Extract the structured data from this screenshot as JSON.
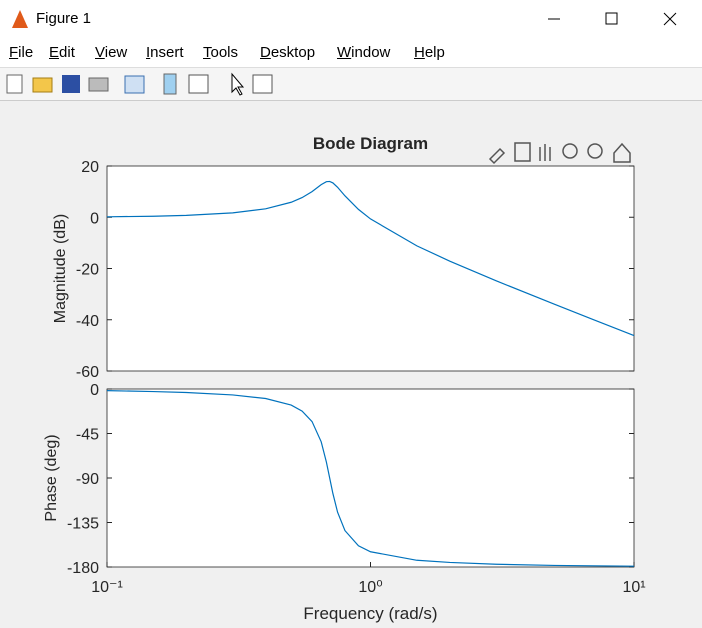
{
  "window": {
    "title": "Figure 1",
    "menu": [
      "File",
      "Edit",
      "View",
      "Insert",
      "Tools",
      "Desktop",
      "Window",
      "Help"
    ]
  },
  "chart_data": [
    {
      "type": "line",
      "title": "Bode Diagram",
      "ylabel": "Magnitude (dB)",
      "x": [
        0.1,
        0.15,
        0.2,
        0.3,
        0.4,
        0.5,
        0.55,
        0.6,
        0.65,
        0.68,
        0.7,
        0.72,
        0.75,
        0.8,
        0.9,
        1,
        1.5,
        2,
        3,
        5,
        7,
        10
      ],
      "series": [
        {
          "color": "#0072bd",
          "values": [
            0.18,
            0.4,
            0.72,
            1.72,
            3.3,
            5.85,
            7.67,
            10.01,
            12.72,
            13.88,
            13.98,
            13.4,
            11.69,
            8.36,
            3.07,
            -0.66,
            -11.17,
            -17.13,
            -24.81,
            -33.99,
            -39.92,
            -46.15
          ]
        }
      ],
      "xscale": "log",
      "xlim": [
        0.1,
        10
      ],
      "ylim": [
        -60,
        20
      ],
      "yticks": [
        -60,
        -40,
        -20,
        0,
        20
      ],
      "grid": false
    },
    {
      "type": "line",
      "ylabel": "Phase (deg)",
      "xlabel": "Frequency  (rad/s)",
      "x": [
        0.1,
        0.15,
        0.2,
        0.3,
        0.4,
        0.5,
        0.55,
        0.6,
        0.65,
        0.68,
        0.7,
        0.72,
        0.75,
        0.8,
        0.9,
        1,
        1.5,
        2,
        3,
        5,
        7,
        10
      ],
      "series": [
        {
          "color": "#0072bd",
          "values": [
            -1.67,
            -2.57,
            -3.56,
            -5.99,
            -9.63,
            -16.26,
            -22.3,
            -32.9,
            -53.4,
            -73.8,
            -90,
            -105.75,
            -124.6,
            -143.2,
            -158.5,
            -164.6,
            -173.2,
            -175.4,
            -177.2,
            -178.4,
            -178.8,
            -179.2
          ]
        }
      ],
      "xscale": "log",
      "xlim": [
        0.1,
        10
      ],
      "ylim": [
        -180,
        0
      ],
      "yticks": [
        -180,
        -135,
        -90,
        -45,
        0
      ],
      "xticks": [
        {
          "value": 0.1,
          "label": "10⁻¹"
        },
        {
          "value": 1,
          "label": "10⁰"
        },
        {
          "value": 10,
          "label": "10¹"
        }
      ],
      "grid": false
    }
  ]
}
